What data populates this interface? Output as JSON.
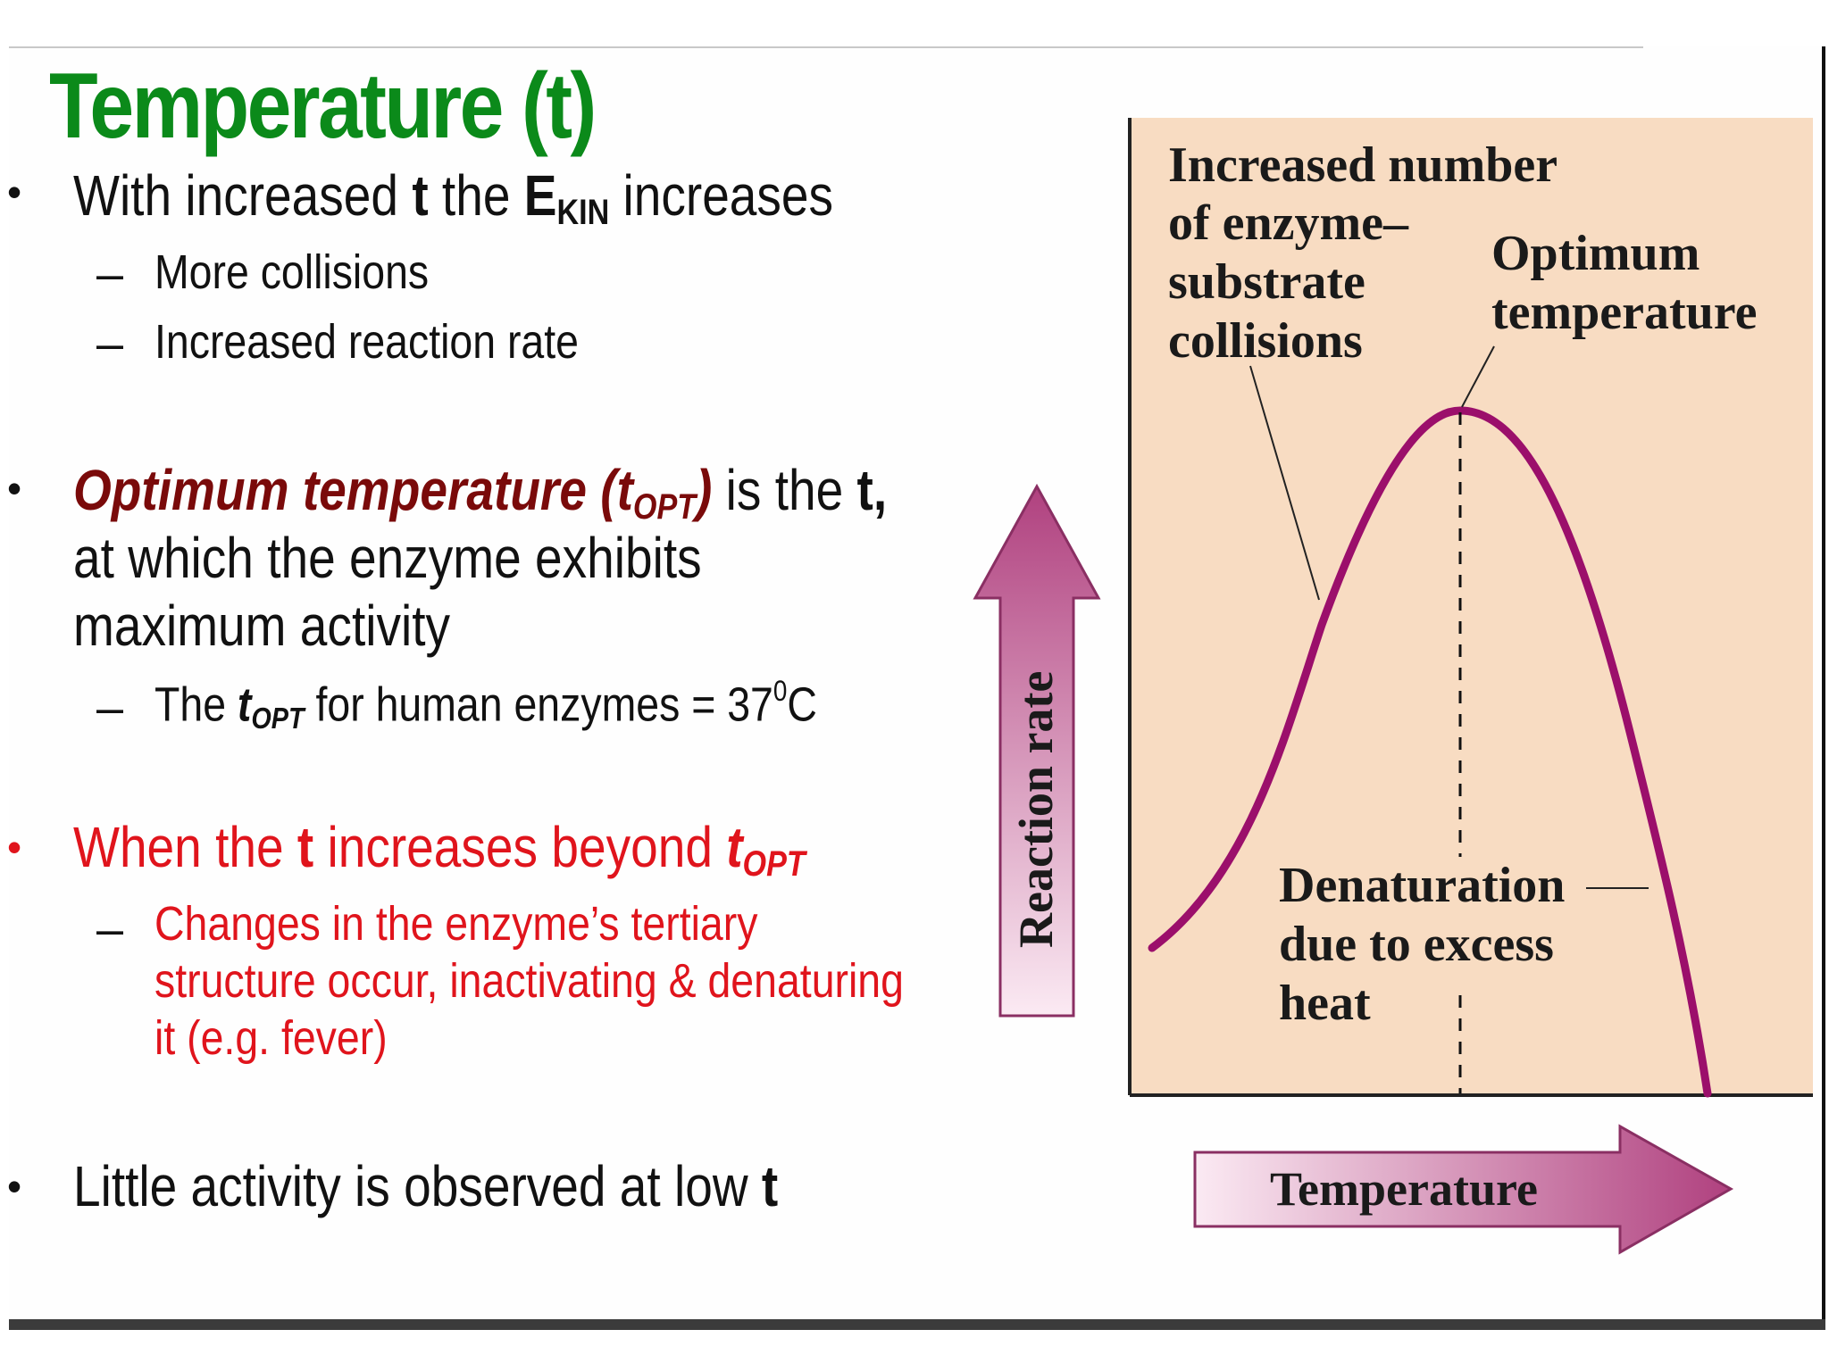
{
  "title": "Temperature (t)",
  "bullets": {
    "b1": {
      "pre": "With increased ",
      "t": "t",
      "mid": " the ",
      "e": "E",
      "e_sub": "KIN",
      "post": " increases",
      "subs": [
        "More collisions",
        "Increased reaction rate"
      ]
    },
    "b2": {
      "term": "Optimum temperature (",
      "t": "t",
      "t_sub": "OPT",
      "close": ")",
      "mid": " is the ",
      "t2": "t,",
      "line2": "at which the enzyme exhibits",
      "line3": "maximum activity",
      "sub_pre": "The ",
      "sub_t": "t",
      "sub_t_sub": "OPT",
      "sub_post": " for human enzymes = 37",
      "sub_sup": "0",
      "sub_unit": "C"
    },
    "b3": {
      "pre": "When the ",
      "t": "t",
      "mid": " increases beyond ",
      "t2": "t",
      "t2_sub": "OPT",
      "sub_lines": [
        "Changes in the enzyme’s tertiary",
        "structure occur, inactivating & denaturing",
        "it (e.g. fever)"
      ]
    },
    "b4": {
      "pre": "Little activity is observed at low ",
      "t": "t"
    }
  },
  "diagram": {
    "label_collisions": [
      "Increased number",
      "of enzyme–",
      "substrate",
      "collisions"
    ],
    "label_optimum": [
      "Optimum",
      "temperature"
    ],
    "label_denaturation": [
      "Denaturation",
      "due to excess",
      "heat"
    ],
    "y_arrow_label": "Reaction rate",
    "x_arrow_label": "Temperature",
    "colors": {
      "panel_bg": "#f8dcc2",
      "curve": "#9b0f6b",
      "arrow_dark": "#b0417f",
      "arrow_light": "#fbeaf3"
    }
  }
}
